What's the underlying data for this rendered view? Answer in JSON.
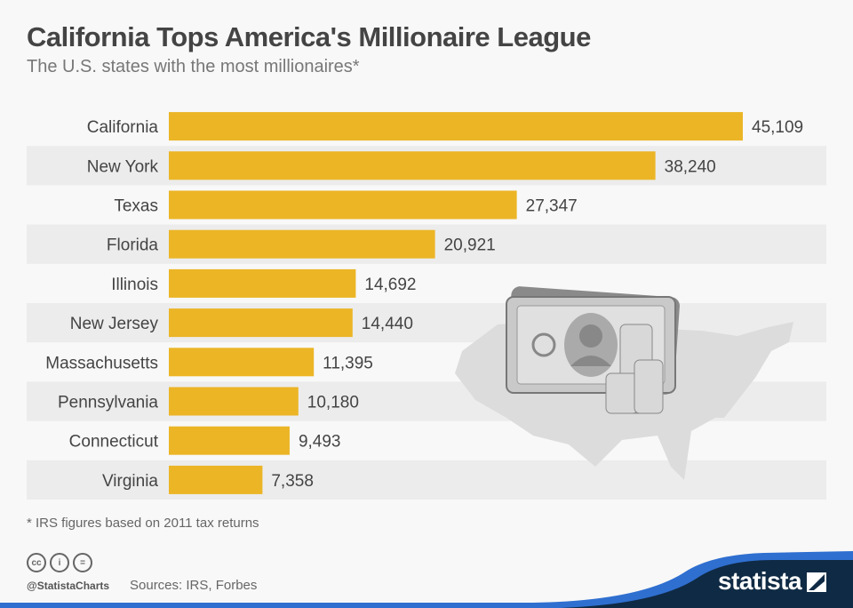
{
  "title": "California Tops America's Millionaire League",
  "subtitle": "The U.S. states with the most millionaires*",
  "footnote": "* IRS figures based on 2011 tax returns",
  "handle": "@StatistaCharts",
  "sources": "Sources: IRS, Forbes",
  "brand": "statista",
  "colors": {
    "bar": "#ebb526",
    "band": "#ececec",
    "background": "#f8f8f8",
    "brand_dark": "#0f2a44",
    "brand_blue": "#2f6fd0"
  },
  "chart_data": {
    "type": "bar",
    "orientation": "horizontal",
    "categories": [
      "California",
      "New York",
      "Texas",
      "Florida",
      "Illinois",
      "New Jersey",
      "Massachusetts",
      "Pennsylvania",
      "Connecticut",
      "Virginia"
    ],
    "values": [
      45109,
      38240,
      27347,
      20921,
      14692,
      14440,
      11395,
      10180,
      9493,
      7358
    ],
    "value_labels": [
      "45,109",
      "38,240",
      "27,347",
      "20,921",
      "14,692",
      "14,440",
      "11,395",
      "10,180",
      "9,493",
      "7,358"
    ],
    "title": "California Tops America's Millionaire League",
    "subtitle": "The U.S. states with the most millionaires*",
    "xlabel": "",
    "ylabel": "",
    "grid": false,
    "legend": "none"
  }
}
